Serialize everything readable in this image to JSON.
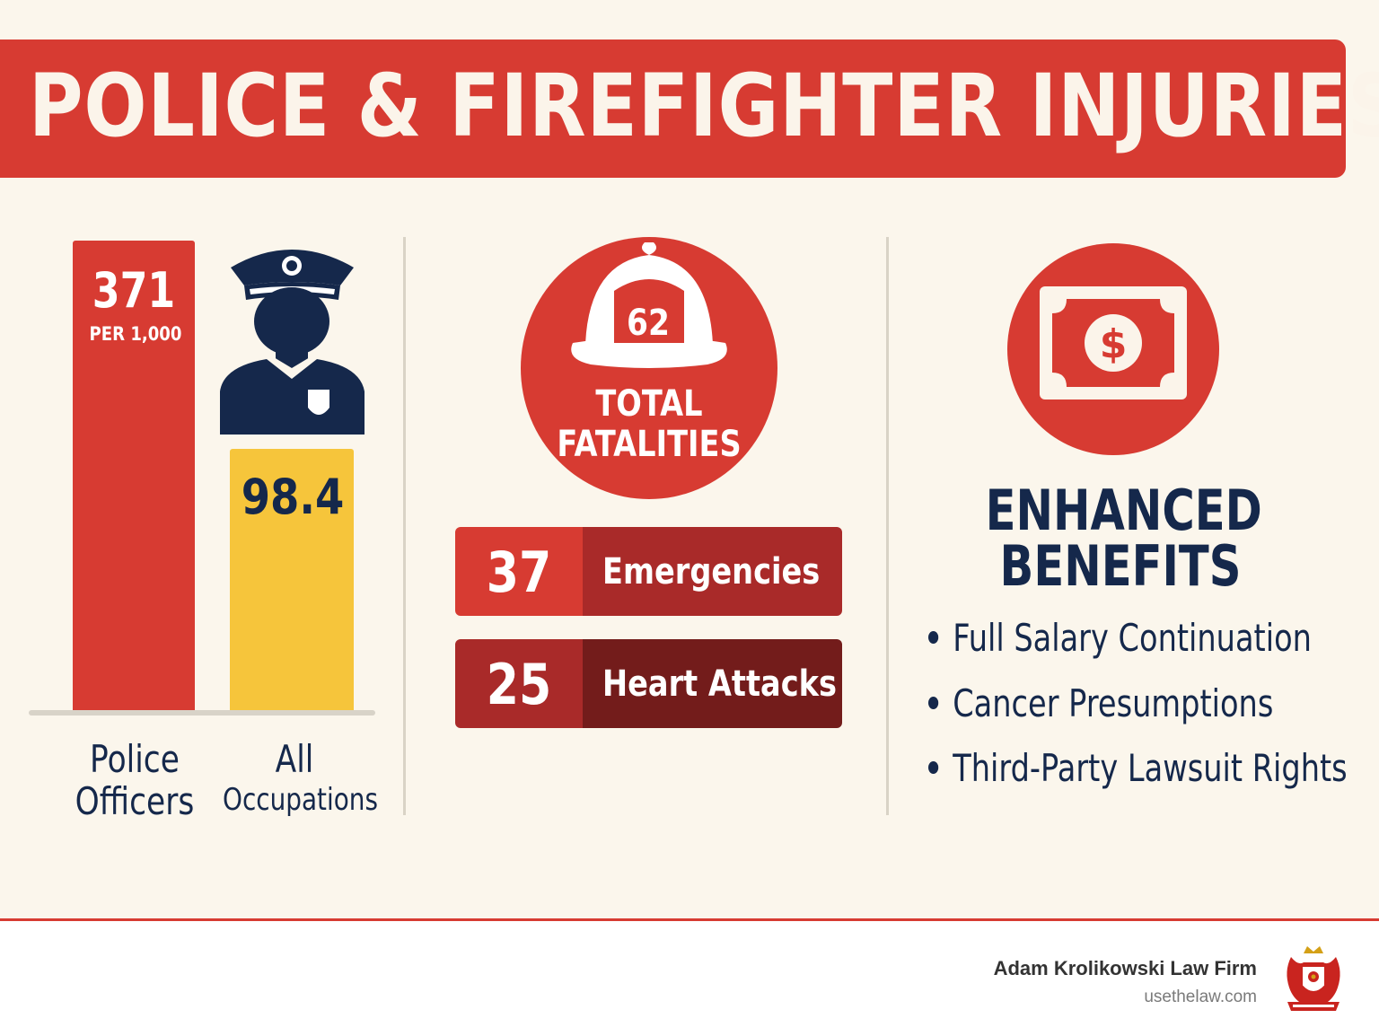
{
  "title": "POLICE & FIREFIGHTER INJURIES",
  "injury_rates": {
    "police": {
      "value": "371",
      "unit": "PER 1,000",
      "label": "Police Officers",
      "color": "#d73b32"
    },
    "all": {
      "value": "98.4",
      "label_line1": "All",
      "label_line2": "Occupations",
      "color": "#f6c53b"
    }
  },
  "chart_data": {
    "type": "bar",
    "categories": [
      "Police Officers",
      "All Occupations"
    ],
    "values": [
      371,
      98.4
    ],
    "unit": "PER 1,000"
  },
  "fatalities": {
    "total": "62",
    "caption_line1": "TOTAL",
    "caption_line2": "FATALITIES",
    "breakdown": [
      {
        "count": "37",
        "label": "Emergencies"
      },
      {
        "count": "25",
        "label": "Heart Attacks"
      }
    ]
  },
  "benefits": {
    "title_line1": "ENHANCED",
    "title_line2": "BENEFITS",
    "items": [
      "Full Salary Continuation",
      "Cancer Presumptions",
      "Third-Party Lawsuit Rights"
    ]
  },
  "footer": {
    "firm": "Adam Krolikowski Law Firm",
    "url": "usethelaw.com"
  },
  "icons": [
    "police-officer-icon",
    "fire-helmet-icon",
    "money-bill-icon",
    "law-firm-crest-logo"
  ],
  "colors": {
    "red": "#d73b32",
    "dark_red": "#a92a29",
    "darker_red": "#731c1b",
    "navy": "#15284b",
    "yellow": "#f6c53b",
    "background": "#fbf6ec"
  }
}
